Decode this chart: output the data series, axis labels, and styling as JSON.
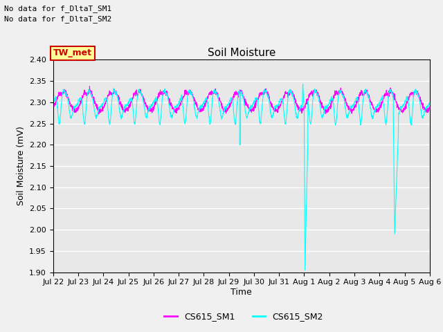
{
  "title": "Soil Moisture",
  "ylabel": "Soil Moisture (mV)",
  "xlabel": "Time",
  "ylim": [
    1.9,
    2.4
  ],
  "yticks": [
    1.9,
    1.95,
    2.0,
    2.05,
    2.1,
    2.15,
    2.2,
    2.25,
    2.3,
    2.35,
    2.4
  ],
  "xtick_labels": [
    "Jul 22",
    "Jul 23",
    "Jul 24",
    "Jul 25",
    "Jul 26",
    "Jul 27",
    "Jul 28",
    "Jul 29",
    "Jul 30",
    "Jul 31",
    "Aug 1",
    "Aug 2",
    "Aug 3",
    "Aug 4",
    "Aug 5",
    "Aug 6"
  ],
  "n_days": 15,
  "line1_color": "#FF00FF",
  "line2_color": "#00FFFF",
  "line1_label": "CS615_SM1",
  "line2_label": "CS615_SM2",
  "annotation1": "No data for f_DltaT_SM1",
  "annotation2": "No data for f_DltaT_SM2",
  "box_label": "TW_met",
  "box_facecolor": "#FFFF99",
  "box_edgecolor": "#CC0000",
  "box_textcolor": "#CC0000",
  "plot_bg_color": "#E8E8E8",
  "fig_bg_color": "#F0F0F0",
  "title_fontsize": 11,
  "label_fontsize": 9,
  "tick_fontsize": 8,
  "annotation_fontsize": 8,
  "legend_fontsize": 9
}
